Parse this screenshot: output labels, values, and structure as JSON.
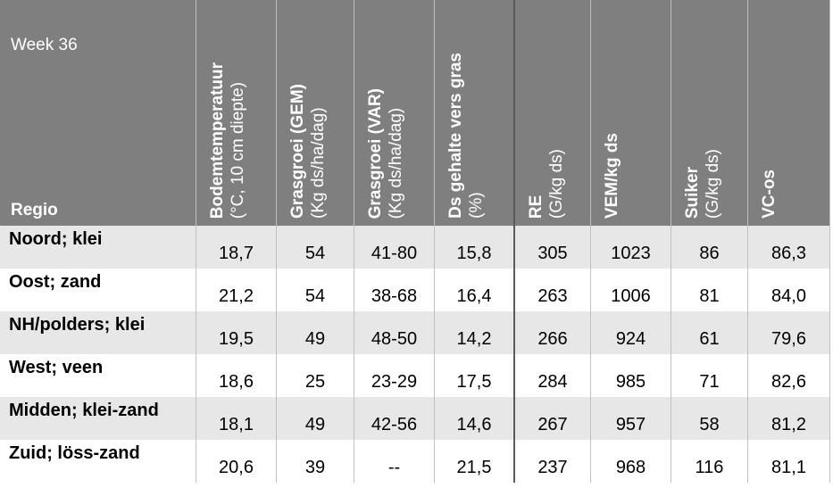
{
  "header": {
    "week": "Week 36",
    "regio": "Regio"
  },
  "columns": [
    {
      "title": "Bodemtemperatuur",
      "subtitle": "(°C, 10 cm diepte)"
    },
    {
      "title": "Grasgroei (GEM)",
      "subtitle": "(Kg ds/ha/dag)"
    },
    {
      "title": "Grasgroei (VAR)",
      "subtitle": "(Kg ds/ha/dag)"
    },
    {
      "title": "Ds gehalte vers gras",
      "subtitle": "(%)"
    },
    {
      "title": "RE",
      "subtitle": "(G/kg ds)"
    },
    {
      "title": "VEM/kg ds"
    },
    {
      "title": "Suiker",
      "subtitle": "(G/kg ds)"
    },
    {
      "title": "VC-os"
    }
  ],
  "rows": [
    {
      "label": "Noord; klei",
      "values": [
        "18,7",
        "54",
        "41-80",
        "15,8",
        "305",
        "1023",
        "86",
        "86,3"
      ]
    },
    {
      "label": "Oost; zand",
      "values": [
        "21,2",
        "54",
        "38-68",
        "16,4",
        "263",
        "1006",
        "81",
        "84,0"
      ]
    },
    {
      "label": "NH/polders; klei",
      "values": [
        "19,5",
        "49",
        "48-50",
        "14,2",
        "266",
        "924",
        "61",
        "79,6"
      ]
    },
    {
      "label": "West; veen",
      "values": [
        "18,6",
        "25",
        "23-29",
        "17,5",
        "284",
        "985",
        "71",
        "82,6"
      ]
    },
    {
      "label": "Midden; klei-zand",
      "values": [
        "18,1",
        "49",
        "42-56",
        "14,6",
        "267",
        "957",
        "58",
        "81,2"
      ]
    },
    {
      "label": "Zuid; löss-zand",
      "values": [
        "20,6",
        "39",
        "--",
        "21,5",
        "237",
        "968",
        "116",
        "81,1"
      ]
    }
  ]
}
